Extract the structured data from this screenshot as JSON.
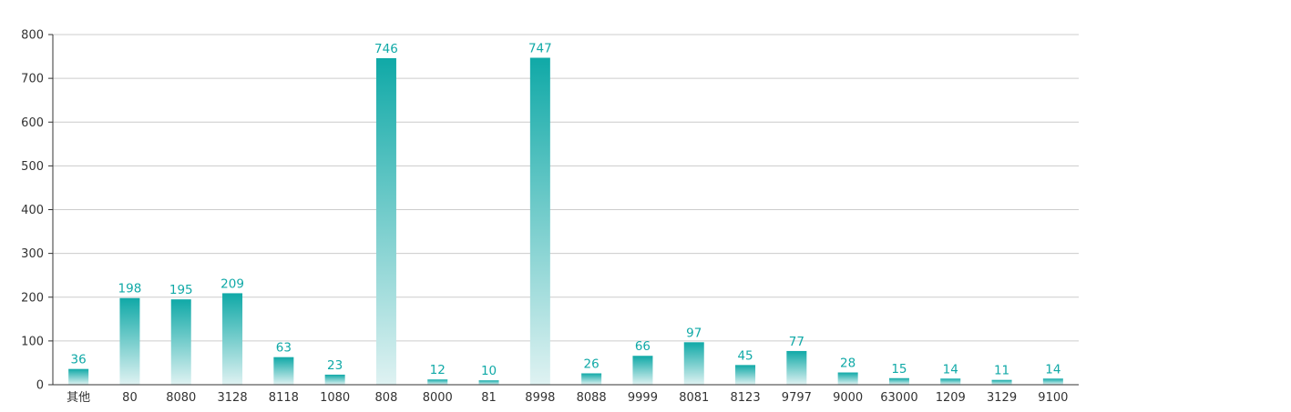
{
  "chart_data": {
    "type": "bar",
    "categories": [
      "其他",
      "80",
      "8080",
      "3128",
      "8118",
      "1080",
      "808",
      "8000",
      "81",
      "8998",
      "8088",
      "9999",
      "8081",
      "8123",
      "9797",
      "9000",
      "63000",
      "1209",
      "3129",
      "9100"
    ],
    "values": [
      36,
      198,
      195,
      209,
      63,
      23,
      746,
      12,
      10,
      747,
      26,
      66,
      97,
      45,
      77,
      28,
      15,
      14,
      11,
      14
    ],
    "ylim": [
      0,
      800
    ],
    "yticks": [
      0,
      100,
      200,
      300,
      400,
      500,
      600,
      700,
      800
    ],
    "grid": true,
    "legend": "none",
    "data_labels": true,
    "bar_color_top": "#10a9a7",
    "bar_color_bottom": "#dff2f2",
    "label_color": "#10a9a7"
  }
}
